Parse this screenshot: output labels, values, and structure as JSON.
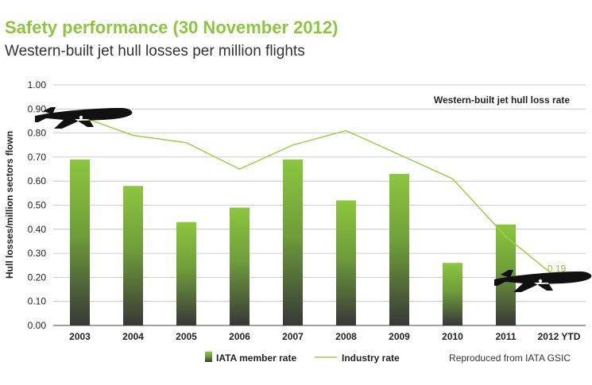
{
  "header": {
    "title": "Safety performance (30 November 2012)",
    "subtitle": "Western-built jet hull losses per million flights"
  },
  "chart_data": {
    "type": "bar",
    "title": "Western-built jet hull loss rate",
    "ylabel": "Hull losses/million sectors flown",
    "xlabel": "",
    "ylim": [
      0,
      1.0
    ],
    "yticks": [
      "0.00",
      "0.10",
      "0.20",
      "0.30",
      "0.40",
      "0.50",
      "0.60",
      "0.70",
      "0.80",
      "0.90",
      "1.00"
    ],
    "grid": true,
    "categories": [
      "2003",
      "2004",
      "2005",
      "2006",
      "2007",
      "2008",
      "2009",
      "2010",
      "2011",
      "2012 YTD"
    ],
    "series": [
      {
        "name": "IATA member rate",
        "type": "bar",
        "values": [
          0.69,
          0.58,
          0.43,
          0.49,
          0.69,
          0.52,
          0.63,
          0.26,
          0.42,
          null
        ]
      },
      {
        "name": "Industry rate",
        "type": "line",
        "values": [
          0.87,
          0.79,
          0.76,
          0.65,
          0.75,
          0.81,
          0.71,
          0.61,
          0.37,
          0.19
        ]
      }
    ],
    "annotations": [
      {
        "category": "2012 YTD",
        "label": "0.19"
      }
    ],
    "legend_position": "bottom",
    "source_note": "Reproduced from IATA GSIC",
    "colors": {
      "bar_top": "#8cc63f",
      "bar_bottom": "#3a3a3a",
      "line": "#9cd04a",
      "annotation": "#8cc63f"
    },
    "icons": [
      "airplane-icon",
      "airplane-icon"
    ]
  }
}
